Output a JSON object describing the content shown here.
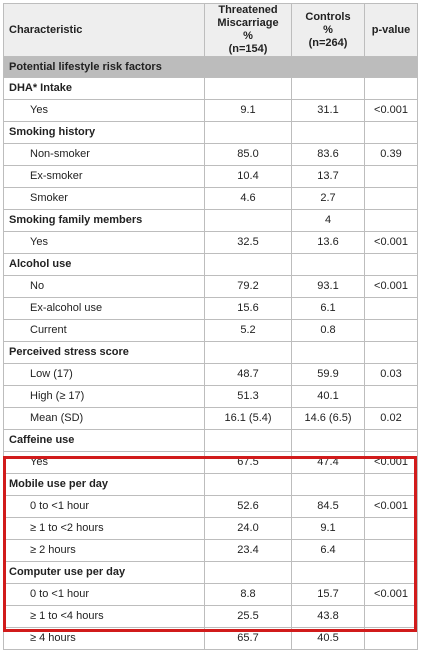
{
  "header": {
    "characteristic": "Characteristic",
    "threatened_l1": "Threatened",
    "threatened_l2": "Miscarriage",
    "threatened_l3": "%",
    "threatened_l4": "(n=154)",
    "controls_l1": "Controls",
    "controls_l2": "%",
    "controls_l3": "(n=264)",
    "pvalue": "p-value"
  },
  "highlight_color": "#d11b1b",
  "rows": [
    {
      "kind": "section",
      "label": "Potential lifestyle risk factors",
      "tm": "",
      "ctrl": "",
      "p": ""
    },
    {
      "kind": "group",
      "label": "DHA* Intake",
      "tm": "",
      "ctrl": "",
      "p": ""
    },
    {
      "kind": "sub",
      "label": "Yes",
      "tm": "9.1",
      "ctrl": "31.1",
      "p": "<0.001"
    },
    {
      "kind": "group",
      "label": "Smoking history",
      "tm": "",
      "ctrl": "",
      "p": ""
    },
    {
      "kind": "sub",
      "label": "Non-smoker",
      "tm": "85.0",
      "ctrl": "83.6",
      "p": "0.39"
    },
    {
      "kind": "sub",
      "label": "Ex-smoker",
      "tm": "10.4",
      "ctrl": "13.7",
      "p": ""
    },
    {
      "kind": "sub",
      "label": "Smoker",
      "tm": "4.6",
      "ctrl": "2.7",
      "p": ""
    },
    {
      "kind": "group",
      "label": "Smoking family members",
      "tm": "",
      "ctrl": "4",
      "p": ""
    },
    {
      "kind": "sub",
      "label": "Yes",
      "tm": "32.5",
      "ctrl": "13.6",
      "p": "<0.001"
    },
    {
      "kind": "group",
      "label": "Alcohol use",
      "tm": "",
      "ctrl": "",
      "p": ""
    },
    {
      "kind": "sub",
      "label": "No",
      "tm": "79.2",
      "ctrl": "93.1",
      "p": "<0.001"
    },
    {
      "kind": "sub",
      "label": "Ex-alcohol use",
      "tm": "15.6",
      "ctrl": "6.1",
      "p": ""
    },
    {
      "kind": "sub",
      "label": "Current",
      "tm": "5.2",
      "ctrl": "0.8",
      "p": ""
    },
    {
      "kind": "group",
      "label": "Perceived stress score",
      "tm": "",
      "ctrl": "",
      "p": ""
    },
    {
      "kind": "sub",
      "label": "Low (17)",
      "tm": "48.7",
      "ctrl": "59.9",
      "p": "0.03"
    },
    {
      "kind": "sub",
      "label": "High (≥ 17)",
      "tm": "51.3",
      "ctrl": "40.1",
      "p": ""
    },
    {
      "kind": "sub",
      "label": "Mean (SD)",
      "tm": "16.1 (5.4)",
      "ctrl": "14.6 (6.5)",
      "p": "0.02"
    },
    {
      "kind": "group",
      "label": "Caffeine use",
      "tm": "",
      "ctrl": "",
      "p": ""
    },
    {
      "kind": "sub",
      "label": "Yes",
      "tm": "67.5",
      "ctrl": "47.4",
      "p": "<0.001"
    },
    {
      "kind": "group",
      "label": "Mobile use per day",
      "tm": "",
      "ctrl": "",
      "p": ""
    },
    {
      "kind": "sub",
      "label": "0 to <1 hour",
      "tm": "52.6",
      "ctrl": "84.5",
      "p": "<0.001"
    },
    {
      "kind": "sub",
      "label": "≥ 1 to <2 hours",
      "tm": "24.0",
      "ctrl": "9.1",
      "p": ""
    },
    {
      "kind": "sub",
      "label": "≥ 2 hours",
      "tm": "23.4",
      "ctrl": "6.4",
      "p": ""
    },
    {
      "kind": "group",
      "label": "Computer use per day",
      "tm": "",
      "ctrl": "",
      "p": ""
    },
    {
      "kind": "sub",
      "label": "0 to <1 hour",
      "tm": "8.8",
      "ctrl": "15.7",
      "p": "<0.001"
    },
    {
      "kind": "sub",
      "label": "≥ 1 to <4 hours",
      "tm": "25.5",
      "ctrl": "43.8",
      "p": ""
    },
    {
      "kind": "sub",
      "label": "≥ 4 hours",
      "tm": "65.7",
      "ctrl": "40.5",
      "p": ""
    }
  ]
}
